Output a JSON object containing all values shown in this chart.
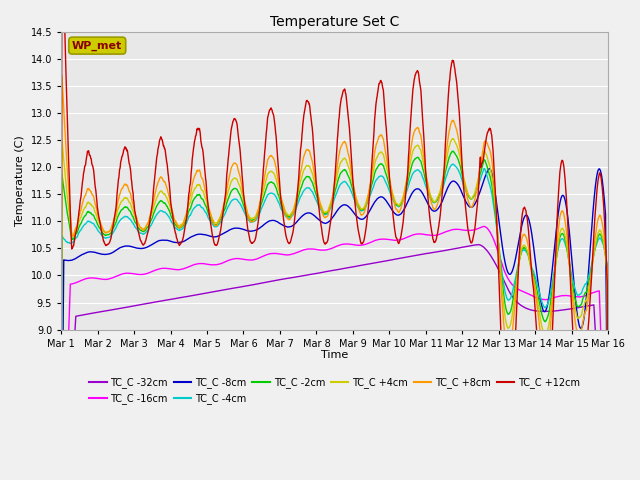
{
  "title": "Temperature Set C",
  "xlabel": "Time",
  "ylabel": "Temperature (C)",
  "ylim": [
    9.0,
    14.5
  ],
  "xlim": [
    0,
    15
  ],
  "xtick_labels": [
    "Mar 1",
    "Mar 2",
    "Mar 3",
    "Mar 4",
    "Mar 5",
    "Mar 6",
    "Mar 7",
    "Mar 8",
    "Mar 9",
    "Mar 10",
    "Mar 11",
    "Mar 12",
    "Mar 13",
    "Mar 14",
    "Mar 15",
    "Mar 16"
  ],
  "series_colors": {
    "TC_C -32cm": "#9900cc",
    "TC_C -16cm": "#ff00ff",
    "TC_C -8cm": "#0000cc",
    "TC_C -4cm": "#00cccc",
    "TC_C -2cm": "#00cc00",
    "TC_C +4cm": "#cccc00",
    "TC_C +8cm": "#ff9900",
    "TC_C +12cm": "#cc0000"
  },
  "wp_met_box_facecolor": "#cccc00",
  "wp_met_text_color": "#880000",
  "plot_bg": "#e8e8e8",
  "grid_color": "#ffffff",
  "fig_bg": "#f0f0f0"
}
